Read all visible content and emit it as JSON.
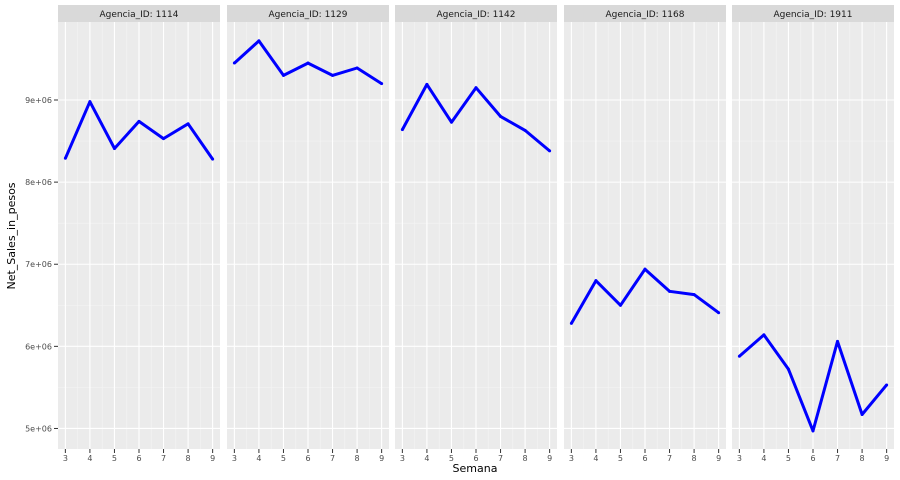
{
  "chart_data": {
    "type": "line",
    "xlabel": "Semana",
    "ylabel": "Net_Sales_in_pesos",
    "x": [
      3,
      4,
      5,
      6,
      7,
      8,
      9
    ],
    "x_ticks": [
      3,
      4,
      5,
      6,
      7,
      8,
      9
    ],
    "y_ticks": [
      5000000,
      6000000,
      7000000,
      8000000,
      9000000
    ],
    "y_tick_labels": [
      "5e+06",
      "6e+06",
      "7e+06",
      "8e+06",
      "9e+06"
    ],
    "ylim": [
      4750000,
      9950000
    ],
    "xlim": [
      2.7,
      9.3
    ],
    "grid": true,
    "line_color": "#0000ff",
    "panel_bg": "#ebebeb",
    "strip_bg": "#d9d9d9",
    "panels": [
      {
        "label": "Agencia_ID: 1114",
        "values": [
          8290000,
          8980000,
          8410000,
          8740000,
          8530000,
          8710000,
          8280000
        ]
      },
      {
        "label": "Agencia_ID: 1129",
        "values": [
          9450000,
          9720000,
          9300000,
          9450000,
          9300000,
          9390000,
          9200000
        ]
      },
      {
        "label": "Agencia_ID: 1142",
        "values": [
          8640000,
          9190000,
          8730000,
          9150000,
          8800000,
          8630000,
          8380000
        ]
      },
      {
        "label": "Agencia_ID: 1168",
        "values": [
          6280000,
          6800000,
          6500000,
          6940000,
          6670000,
          6630000,
          6410000
        ]
      },
      {
        "label": "Agencia_ID: 1911",
        "values": [
          5880000,
          6140000,
          5720000,
          4970000,
          6060000,
          5170000,
          5530000
        ]
      }
    ]
  }
}
